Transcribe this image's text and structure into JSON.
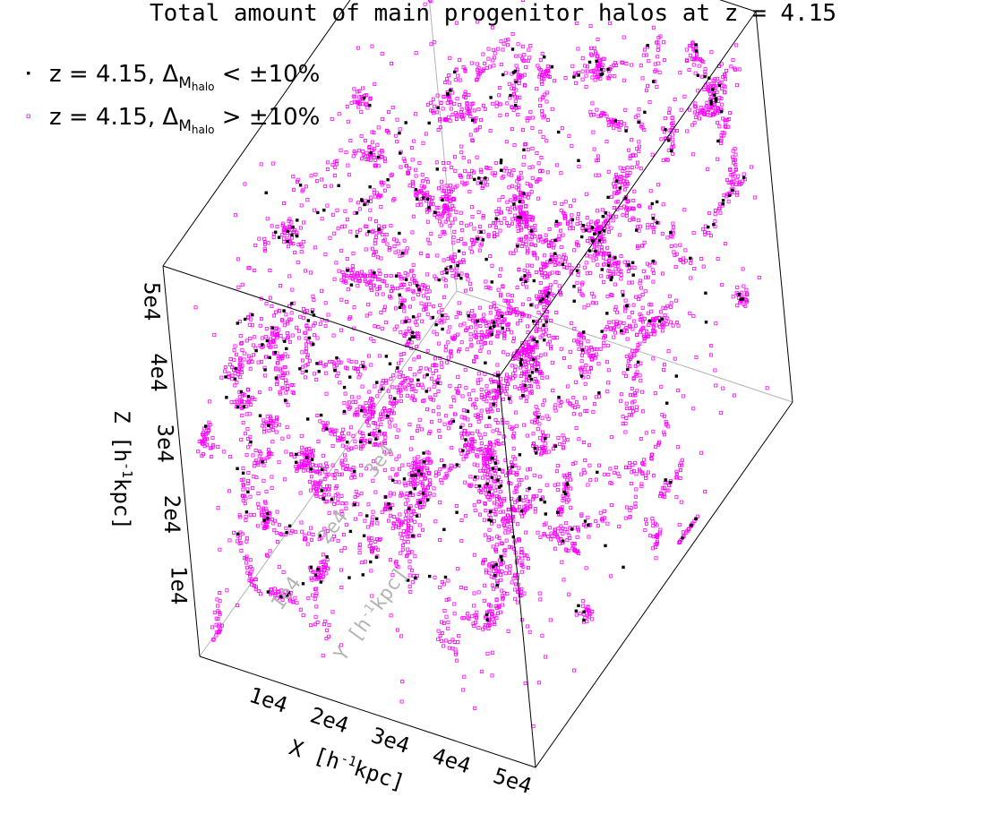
{
  "chart_data": {
    "type": "scatter",
    "title": "Total amount of main progenitor halos at z = 4.15",
    "axes": {
      "x": {
        "label": "X [h",
        "exp": "-1",
        "unit": "kpc]",
        "range": [
          0,
          55000
        ],
        "ticks": [
          "1e4",
          "2e4",
          "3e4",
          "4e4",
          "5e4"
        ]
      },
      "y": {
        "label": "Y [h",
        "exp": "-1",
        "unit": "kpc]",
        "range": [
          0,
          55000
        ],
        "ticks": [
          "1e4",
          "2e4",
          "3e4"
        ]
      },
      "z": {
        "label": "Z [h",
        "exp": "-1",
        "unit": "kpc]",
        "range": [
          0,
          55000
        ],
        "ticks": [
          "1e4",
          "2e4",
          "3e4",
          "4e4",
          "5e4"
        ]
      }
    },
    "legend": {
      "placement": "top-left",
      "entries": [
        {
          "prefix": "z = 4.15,  ",
          "delta": "Δ",
          "sub": "M",
          "subsub": "halo",
          "relation": " < ±10%",
          "color": "#000000"
        },
        {
          "prefix": "z = 4.15,  ",
          "delta": "Δ",
          "sub": "M",
          "subsub": "halo",
          "relation": " > ±10%",
          "color": "#ff00ff"
        }
      ]
    },
    "series": [
      {
        "name": "z = 4.15, ΔMhalo < ±10%",
        "color": "#000000",
        "marker": "filled-square",
        "count": 450
      },
      {
        "name": "z = 4.15, ΔMhalo > ±10%",
        "color": "#ff00ff",
        "marker": "open-square",
        "count": 5200
      }
    ],
    "grid": false
  }
}
